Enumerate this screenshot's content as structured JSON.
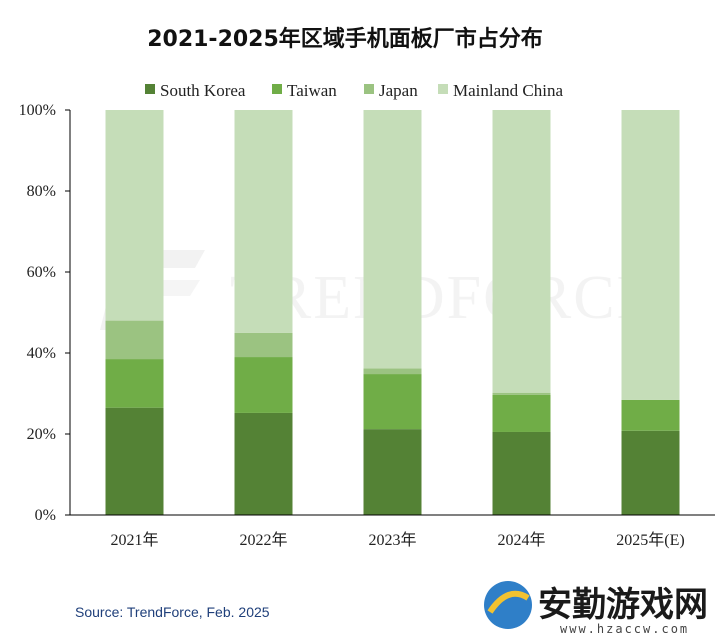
{
  "chart_data": {
    "type": "bar",
    "stacked": true,
    "title": "2021-2025年区域手机面板厂市占分布",
    "categories": [
      "2021年",
      "2022年",
      "2023年",
      "2024年",
      "2025年(E)"
    ],
    "series": [
      {
        "name": "South Korea",
        "color": "#548235",
        "values": [
          26.5,
          25.2,
          21.2,
          20.5,
          20.8
        ]
      },
      {
        "name": "Taiwan",
        "color": "#70ad47",
        "values": [
          12.0,
          13.8,
          13.6,
          9.2,
          7.6
        ]
      },
      {
        "name": "Japan",
        "color": "#9bc381",
        "values": [
          9.5,
          6.0,
          1.4,
          0.5,
          0.0
        ]
      },
      {
        "name": "Mainland China",
        "color": "#c5ddb8",
        "values": [
          52.0,
          55.0,
          63.8,
          69.8,
          71.6
        ]
      }
    ],
    "yticks": [
      "0%",
      "20%",
      "40%",
      "60%",
      "80%",
      "100%"
    ],
    "ylim": [
      0,
      100
    ],
    "legend_position": "top",
    "grid": false
  },
  "source": "Source: TrendForce, Feb. 2025",
  "watermark": "TRENDFORCE",
  "site_badge": {
    "name": "安勤游戏网",
    "url": "www.hzaccw.com"
  }
}
